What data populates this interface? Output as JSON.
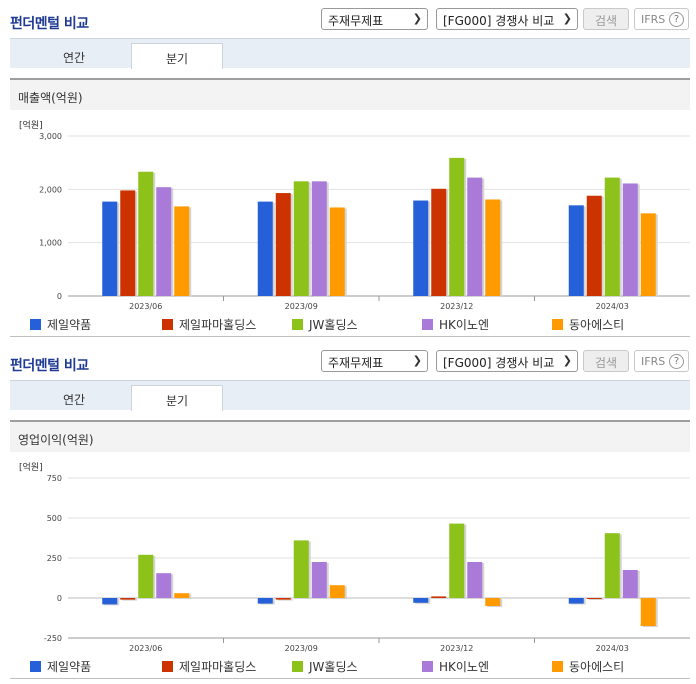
{
  "controls": {
    "financial_select": "주재무제표",
    "compare_select": "[FG000] 경쟁사 비교",
    "search_label": "검색",
    "ifrs_label": "IFRS",
    "help_glyph": "?"
  },
  "panels": [
    {
      "title": "펀더멘털 비교",
      "tabs": [
        "연간",
        "분기"
      ],
      "active_tab": "분기",
      "metric_title": "매출액(억원)",
      "chart_data": {
        "type": "bar",
        "unit_label": "[억원]",
        "categories": [
          "2023/06",
          "2023/09",
          "2023/12",
          "2024/03"
        ],
        "ylim": [
          0,
          3000
        ],
        "yticks": [
          0,
          1000,
          2000,
          3000
        ],
        "ytick_labels": [
          "0",
          "1,000",
          "2,000",
          "3,000"
        ],
        "grid": true,
        "legend_position": "bottom",
        "series": [
          {
            "name": "제일약품",
            "color": "#2660d8",
            "values": [
              1770,
              1770,
              1790,
              1700
            ]
          },
          {
            "name": "제일파마홀딩스",
            "color": "#cc3300",
            "values": [
              1980,
              1930,
              2010,
              1880
            ]
          },
          {
            "name": "JW홀딩스",
            "color": "#8cc21a",
            "values": [
              2330,
              2150,
              2590,
              2220
            ]
          },
          {
            "name": "HK이노엔",
            "color": "#a97ad8",
            "values": [
              2040,
              2150,
              2220,
              2110
            ]
          },
          {
            "name": "동아에스티",
            "color": "#ff9a00",
            "values": [
              1680,
              1660,
              1810,
              1550
            ]
          }
        ]
      }
    },
    {
      "title": "펀더멘털 비교",
      "tabs": [
        "연간",
        "분기"
      ],
      "active_tab": "분기",
      "metric_title": "영업이익(억원)",
      "chart_data": {
        "type": "bar",
        "unit_label": "[억원]",
        "categories": [
          "2023/06",
          "2023/09",
          "2023/12",
          "2024/03"
        ],
        "ylim": [
          -250,
          750
        ],
        "yticks": [
          -250,
          0,
          250,
          500,
          750
        ],
        "ytick_labels": [
          "-250",
          "0",
          "250",
          "500",
          "750"
        ],
        "grid": true,
        "legend_position": "bottom",
        "series": [
          {
            "name": "제일약품",
            "color": "#2660d8",
            "values": [
              -40,
              -35,
              -30,
              -35
            ]
          },
          {
            "name": "제일파마홀딩스",
            "color": "#cc3300",
            "values": [
              -10,
              -10,
              10,
              0
            ]
          },
          {
            "name": "JW홀딩스",
            "color": "#8cc21a",
            "values": [
              270,
              360,
              465,
              405
            ]
          },
          {
            "name": "HK이노엔",
            "color": "#a97ad8",
            "values": [
              155,
              225,
              225,
              175
            ]
          },
          {
            "name": "동아에스티",
            "color": "#ff9a00",
            "values": [
              30,
              80,
              -50,
              -175
            ]
          }
        ]
      }
    }
  ]
}
